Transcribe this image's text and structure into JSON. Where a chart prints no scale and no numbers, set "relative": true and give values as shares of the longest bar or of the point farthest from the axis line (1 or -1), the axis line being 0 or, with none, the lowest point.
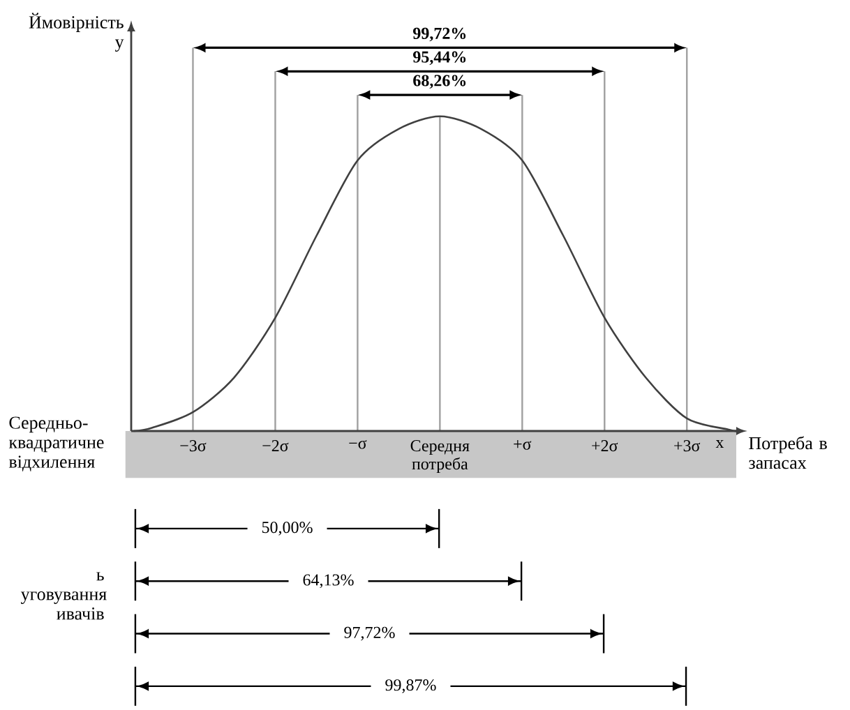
{
  "chart_data": {
    "type": "line",
    "relative": true,
    "ylabel": "Ймовірність у",
    "xlabel": "Потреба в запасах",
    "xlim": [
      -3.75,
      3.6
    ],
    "xticks": [
      {
        "value": -3,
        "label": "−3σ"
      },
      {
        "value": -2,
        "label": "−2σ"
      },
      {
        "value": -1,
        "label": "−σ"
      },
      {
        "value": 0,
        "label": "Середня потреба"
      },
      {
        "value": 1,
        "label": "+σ"
      },
      {
        "value": 2,
        "label": "+2σ"
      },
      {
        "value": 3,
        "label": "+3σ"
      },
      {
        "value": 3.4,
        "label": "x"
      }
    ],
    "series": [
      {
        "color": "#404040",
        "x": [
          -3.72,
          -3.5,
          -3,
          -2.5,
          -2,
          -1.5,
          -1,
          -0.5,
          0,
          0.5,
          1,
          1.5,
          2,
          2.5,
          3,
          3.5,
          3.6
        ],
        "values": [
          0,
          0.01,
          0.06,
          0.17,
          0.36,
          0.62,
          0.86,
          0.96,
          1,
          0.96,
          0.86,
          0.62,
          0.36,
          0.17,
          0.04,
          0.005,
          0
        ]
      }
    ],
    "ref_lines": [
      {
        "axis": "x",
        "value": -3,
        "color": "#a0a0a0"
      },
      {
        "axis": "x",
        "value": -2,
        "color": "#a0a0a0"
      },
      {
        "axis": "x",
        "value": -1,
        "color": "#a0a0a0"
      },
      {
        "axis": "x",
        "value": 0,
        "color": "#a0a0a0"
      },
      {
        "axis": "x",
        "value": 1,
        "color": "#a0a0a0"
      },
      {
        "axis": "x",
        "value": 2,
        "color": "#a0a0a0"
      },
      {
        "axis": "x",
        "value": 3,
        "color": "#a0a0a0"
      }
    ],
    "annotations": [
      "99,72%",
      "95,44%",
      "68,26%",
      "50,00%",
      "64,13%",
      "97,72%",
      "99,87%",
      "Середньо-квадратичне відхилення",
      "ь уговування ивачів"
    ]
  }
}
